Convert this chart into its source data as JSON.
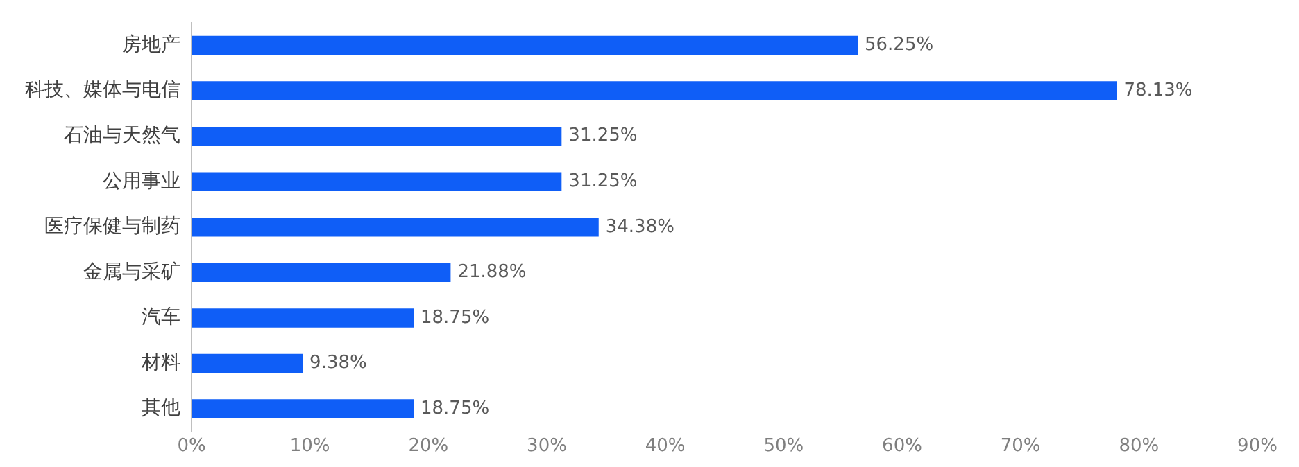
{
  "chart_data": {
    "type": "bar",
    "orientation": "horizontal",
    "categories": [
      "房地产",
      "科技、媒体与电信",
      "石油与天然气",
      "公用事业",
      "医疗保健与制药",
      "金属与采矿",
      "汽车",
      "材料",
      "其他"
    ],
    "values": [
      56.25,
      78.13,
      31.25,
      31.25,
      34.38,
      21.88,
      18.75,
      9.38,
      18.75
    ],
    "value_labels": [
      "56.25%",
      "78.13%",
      "31.25%",
      "31.25%",
      "34.38%",
      "21.88%",
      "18.75%",
      "9.38%",
      "18.75%"
    ],
    "color": "#0f5ef7",
    "xlim": [
      0,
      90
    ],
    "xticks": [
      {
        "value": 0,
        "label": "0%"
      },
      {
        "value": 10,
        "label": "10%"
      },
      {
        "value": 20,
        "label": "20%"
      },
      {
        "value": 30,
        "label": "30%"
      },
      {
        "value": 40,
        "label": "40%"
      },
      {
        "value": 50,
        "label": "50%"
      },
      {
        "value": 60,
        "label": "60%"
      },
      {
        "value": 70,
        "label": "70%"
      },
      {
        "value": 80,
        "label": "80%"
      },
      {
        "value": 90,
        "label": "90%"
      }
    ],
    "grid": false,
    "legend": false
  }
}
